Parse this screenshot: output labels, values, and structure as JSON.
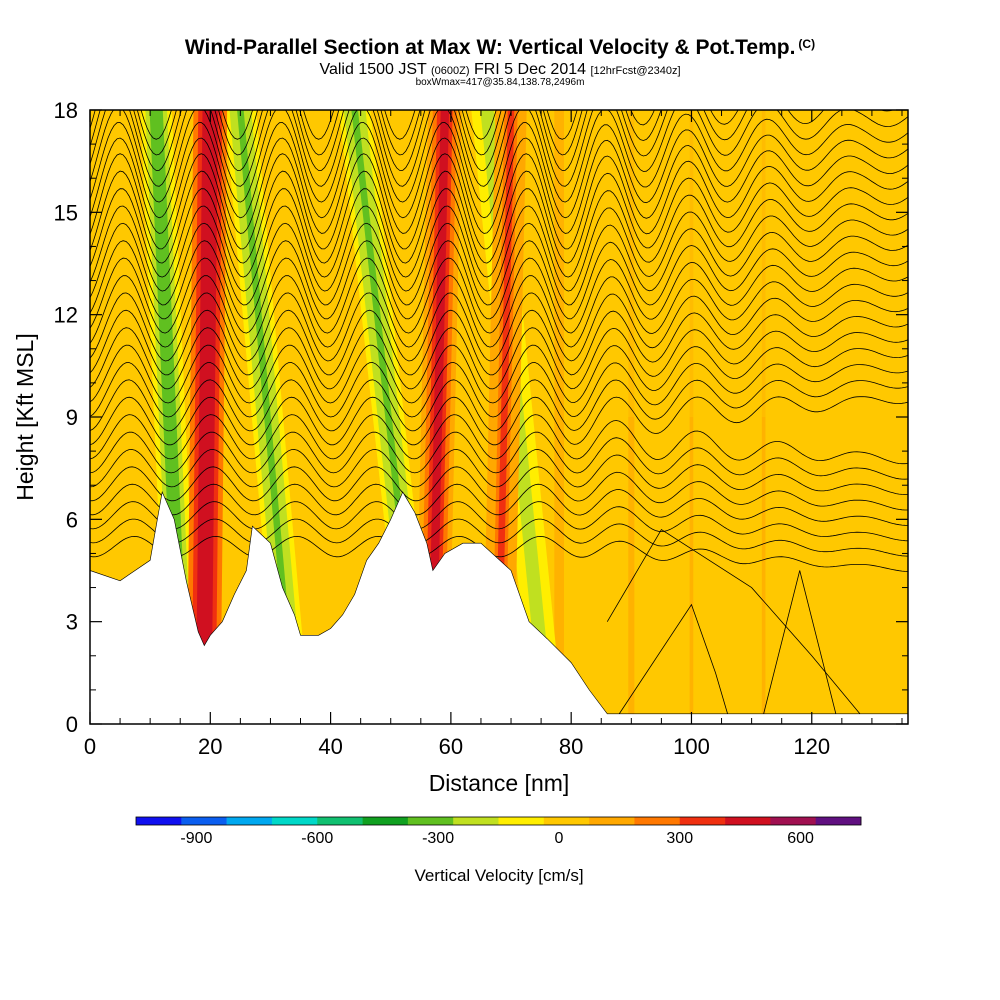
{
  "header": {
    "title": "Wind-Parallel Section at Max W: Vertical Velocity & Pot.Temp.",
    "title_sup": "(C)",
    "valid_a": "Valid 1500 JST",
    "valid_b": "(0600Z)",
    "valid_c": "FRI 5 Dec 2014",
    "valid_d": "[12hrFcst@2340z]",
    "boxline": "boxWmax=417@35.84,138.78,2496m"
  },
  "chart_data": {
    "type": "heatmap",
    "title": "Wind-Parallel Section at Max W: Vertical Velocity & Pot.Temp.",
    "xlabel": "Distance [nm]",
    "ylabel": "Height [Kft MSL]",
    "xlim": [
      0,
      136
    ],
    "ylim": [
      0,
      18
    ],
    "x_ticks": [
      0,
      20,
      40,
      60,
      80,
      100,
      120
    ],
    "y_ticks": [
      0,
      3,
      6,
      9,
      12,
      15,
      18
    ],
    "colorbar": {
      "label": "Vertical Velocity [cm/s]",
      "tick_values": [
        -900,
        -600,
        -300,
        0,
        300,
        600
      ],
      "tick_labels": [
        "-900",
        "-600",
        "-300",
        "0",
        "300",
        "600"
      ],
      "colors": [
        "#1010f0",
        "#0a5ef0",
        "#00a8f0",
        "#00d8c8",
        "#10c070",
        "#10a020",
        "#60c020",
        "#c0e020",
        "#ffee00",
        "#ffc800",
        "#ffa800",
        "#ff7800",
        "#f03010",
        "#d01020",
        "#a01050",
        "#601080"
      ]
    },
    "terrain": [
      [
        0,
        4.5
      ],
      [
        5,
        4.2
      ],
      [
        10,
        4.8
      ],
      [
        12,
        6.8
      ],
      [
        14,
        6.0
      ],
      [
        16,
        4.2
      ],
      [
        18,
        2.7
      ],
      [
        19,
        2.3
      ],
      [
        20,
        2.6
      ],
      [
        22,
        3.0
      ],
      [
        24,
        3.8
      ],
      [
        26,
        4.5
      ],
      [
        27,
        5.8
      ],
      [
        30,
        5.3
      ],
      [
        32,
        4.0
      ],
      [
        34,
        3.2
      ],
      [
        35,
        2.6
      ],
      [
        38,
        2.6
      ],
      [
        40,
        2.8
      ],
      [
        42,
        3.2
      ],
      [
        44,
        3.8
      ],
      [
        46,
        4.8
      ],
      [
        48,
        5.3
      ],
      [
        50,
        6.0
      ],
      [
        52,
        6.8
      ],
      [
        54,
        6.2
      ],
      [
        56,
        5.3
      ],
      [
        57,
        4.5
      ],
      [
        59,
        5.0
      ],
      [
        62,
        5.3
      ],
      [
        65,
        5.3
      ],
      [
        70,
        4.5
      ],
      [
        73,
        3.0
      ],
      [
        76,
        2.5
      ],
      [
        80,
        1.8
      ],
      [
        83,
        1.0
      ],
      [
        86,
        0.3
      ],
      [
        136,
        0.3
      ]
    ],
    "updrafts": [
      {
        "x_base": 19,
        "x_top": 20,
        "w": 520
      },
      {
        "x_base": 57,
        "x_top": 59,
        "w": 420
      },
      {
        "x_base": 68,
        "x_top": 70,
        "w": 300
      }
    ],
    "downdrafts": [
      {
        "x_base": 15,
        "x_top": 11,
        "w": -330
      },
      {
        "x_base": 33,
        "x_top": 25,
        "w": -300
      },
      {
        "x_base": 54,
        "x_top": 44,
        "w": -290
      },
      {
        "x_base": 75,
        "x_top": 66,
        "w": -240
      }
    ]
  }
}
